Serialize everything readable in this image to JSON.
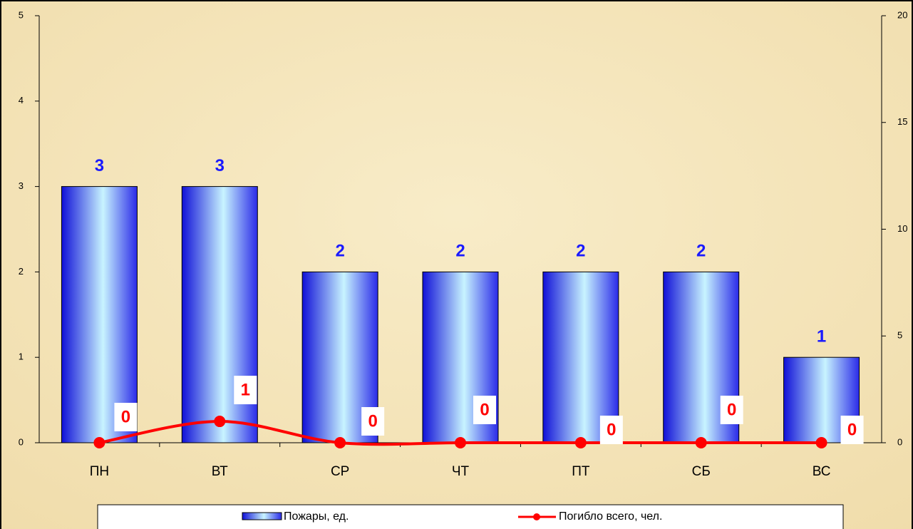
{
  "chart_data": {
    "type": "bar_line",
    "categories": [
      "ПН",
      "ВТ",
      "СР",
      "ЧТ",
      "ПТ",
      "СБ",
      "ВС"
    ],
    "series": [
      {
        "name": "Пожары, ед.",
        "type": "bar",
        "color": "#1a1aff",
        "values": [
          3,
          3,
          2,
          2,
          2,
          2,
          1
        ]
      },
      {
        "name": "Погибло всего, чел.",
        "type": "line",
        "axis": "y2",
        "color": "#ff0000",
        "values": [
          0,
          1,
          0,
          0,
          0,
          0,
          0
        ]
      }
    ],
    "ylim": [
      0,
      5
    ],
    "yticks": [
      0,
      1,
      2,
      3,
      4,
      5
    ],
    "y2lim": [
      0,
      20
    ],
    "y2ticks": [
      0,
      5,
      10,
      15,
      20
    ],
    "legend": "bottom"
  }
}
